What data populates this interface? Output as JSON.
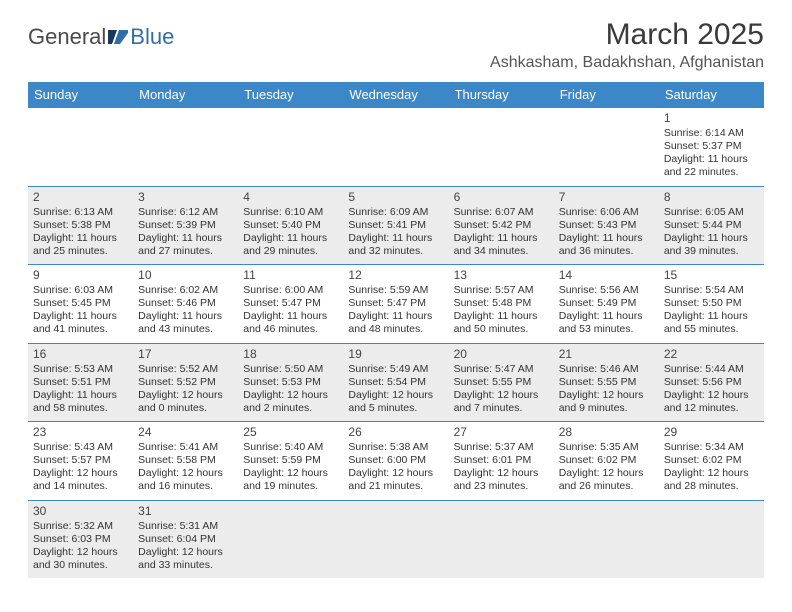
{
  "logo": {
    "text1": "General",
    "text2": "Blue",
    "color1": "#5a5a5a",
    "color2": "#2f6fa8",
    "icon_color": "#2f6fa8"
  },
  "title": "March 2025",
  "subtitle": "Ashkasham, Badakhshan, Afghanistan",
  "header_bg": "#3b87c8",
  "header_fg": "#ffffff",
  "alt_row_bg": "#ececec",
  "border_color": "#3b87c8",
  "dayHeaders": [
    "Sunday",
    "Monday",
    "Tuesday",
    "Wednesday",
    "Thursday",
    "Friday",
    "Saturday"
  ],
  "weeks": [
    {
      "alt": false,
      "days": [
        null,
        null,
        null,
        null,
        null,
        null,
        {
          "n": "1",
          "sr": "Sunrise: 6:14 AM",
          "ss": "Sunset: 5:37 PM",
          "d1": "Daylight: 11 hours",
          "d2": "and 22 minutes."
        }
      ]
    },
    {
      "alt": true,
      "days": [
        {
          "n": "2",
          "sr": "Sunrise: 6:13 AM",
          "ss": "Sunset: 5:38 PM",
          "d1": "Daylight: 11 hours",
          "d2": "and 25 minutes."
        },
        {
          "n": "3",
          "sr": "Sunrise: 6:12 AM",
          "ss": "Sunset: 5:39 PM",
          "d1": "Daylight: 11 hours",
          "d2": "and 27 minutes."
        },
        {
          "n": "4",
          "sr": "Sunrise: 6:10 AM",
          "ss": "Sunset: 5:40 PM",
          "d1": "Daylight: 11 hours",
          "d2": "and 29 minutes."
        },
        {
          "n": "5",
          "sr": "Sunrise: 6:09 AM",
          "ss": "Sunset: 5:41 PM",
          "d1": "Daylight: 11 hours",
          "d2": "and 32 minutes."
        },
        {
          "n": "6",
          "sr": "Sunrise: 6:07 AM",
          "ss": "Sunset: 5:42 PM",
          "d1": "Daylight: 11 hours",
          "d2": "and 34 minutes."
        },
        {
          "n": "7",
          "sr": "Sunrise: 6:06 AM",
          "ss": "Sunset: 5:43 PM",
          "d1": "Daylight: 11 hours",
          "d2": "and 36 minutes."
        },
        {
          "n": "8",
          "sr": "Sunrise: 6:05 AM",
          "ss": "Sunset: 5:44 PM",
          "d1": "Daylight: 11 hours",
          "d2": "and 39 minutes."
        }
      ]
    },
    {
      "alt": false,
      "days": [
        {
          "n": "9",
          "sr": "Sunrise: 6:03 AM",
          "ss": "Sunset: 5:45 PM",
          "d1": "Daylight: 11 hours",
          "d2": "and 41 minutes."
        },
        {
          "n": "10",
          "sr": "Sunrise: 6:02 AM",
          "ss": "Sunset: 5:46 PM",
          "d1": "Daylight: 11 hours",
          "d2": "and 43 minutes."
        },
        {
          "n": "11",
          "sr": "Sunrise: 6:00 AM",
          "ss": "Sunset: 5:47 PM",
          "d1": "Daylight: 11 hours",
          "d2": "and 46 minutes."
        },
        {
          "n": "12",
          "sr": "Sunrise: 5:59 AM",
          "ss": "Sunset: 5:47 PM",
          "d1": "Daylight: 11 hours",
          "d2": "and 48 minutes."
        },
        {
          "n": "13",
          "sr": "Sunrise: 5:57 AM",
          "ss": "Sunset: 5:48 PM",
          "d1": "Daylight: 11 hours",
          "d2": "and 50 minutes."
        },
        {
          "n": "14",
          "sr": "Sunrise: 5:56 AM",
          "ss": "Sunset: 5:49 PM",
          "d1": "Daylight: 11 hours",
          "d2": "and 53 minutes."
        },
        {
          "n": "15",
          "sr": "Sunrise: 5:54 AM",
          "ss": "Sunset: 5:50 PM",
          "d1": "Daylight: 11 hours",
          "d2": "and 55 minutes."
        }
      ]
    },
    {
      "alt": true,
      "days": [
        {
          "n": "16",
          "sr": "Sunrise: 5:53 AM",
          "ss": "Sunset: 5:51 PM",
          "d1": "Daylight: 11 hours",
          "d2": "and 58 minutes."
        },
        {
          "n": "17",
          "sr": "Sunrise: 5:52 AM",
          "ss": "Sunset: 5:52 PM",
          "d1": "Daylight: 12 hours",
          "d2": "and 0 minutes."
        },
        {
          "n": "18",
          "sr": "Sunrise: 5:50 AM",
          "ss": "Sunset: 5:53 PM",
          "d1": "Daylight: 12 hours",
          "d2": "and 2 minutes."
        },
        {
          "n": "19",
          "sr": "Sunrise: 5:49 AM",
          "ss": "Sunset: 5:54 PM",
          "d1": "Daylight: 12 hours",
          "d2": "and 5 minutes."
        },
        {
          "n": "20",
          "sr": "Sunrise: 5:47 AM",
          "ss": "Sunset: 5:55 PM",
          "d1": "Daylight: 12 hours",
          "d2": "and 7 minutes."
        },
        {
          "n": "21",
          "sr": "Sunrise: 5:46 AM",
          "ss": "Sunset: 5:55 PM",
          "d1": "Daylight: 12 hours",
          "d2": "and 9 minutes."
        },
        {
          "n": "22",
          "sr": "Sunrise: 5:44 AM",
          "ss": "Sunset: 5:56 PM",
          "d1": "Daylight: 12 hours",
          "d2": "and 12 minutes."
        }
      ]
    },
    {
      "alt": false,
      "days": [
        {
          "n": "23",
          "sr": "Sunrise: 5:43 AM",
          "ss": "Sunset: 5:57 PM",
          "d1": "Daylight: 12 hours",
          "d2": "and 14 minutes."
        },
        {
          "n": "24",
          "sr": "Sunrise: 5:41 AM",
          "ss": "Sunset: 5:58 PM",
          "d1": "Daylight: 12 hours",
          "d2": "and 16 minutes."
        },
        {
          "n": "25",
          "sr": "Sunrise: 5:40 AM",
          "ss": "Sunset: 5:59 PM",
          "d1": "Daylight: 12 hours",
          "d2": "and 19 minutes."
        },
        {
          "n": "26",
          "sr": "Sunrise: 5:38 AM",
          "ss": "Sunset: 6:00 PM",
          "d1": "Daylight: 12 hours",
          "d2": "and 21 minutes."
        },
        {
          "n": "27",
          "sr": "Sunrise: 5:37 AM",
          "ss": "Sunset: 6:01 PM",
          "d1": "Daylight: 12 hours",
          "d2": "and 23 minutes."
        },
        {
          "n": "28",
          "sr": "Sunrise: 5:35 AM",
          "ss": "Sunset: 6:02 PM",
          "d1": "Daylight: 12 hours",
          "d2": "and 26 minutes."
        },
        {
          "n": "29",
          "sr": "Sunrise: 5:34 AM",
          "ss": "Sunset: 6:02 PM",
          "d1": "Daylight: 12 hours",
          "d2": "and 28 minutes."
        }
      ]
    },
    {
      "alt": true,
      "days": [
        {
          "n": "30",
          "sr": "Sunrise: 5:32 AM",
          "ss": "Sunset: 6:03 PM",
          "d1": "Daylight: 12 hours",
          "d2": "and 30 minutes."
        },
        {
          "n": "31",
          "sr": "Sunrise: 5:31 AM",
          "ss": "Sunset: 6:04 PM",
          "d1": "Daylight: 12 hours",
          "d2": "and 33 minutes."
        },
        null,
        null,
        null,
        null,
        null
      ]
    }
  ]
}
